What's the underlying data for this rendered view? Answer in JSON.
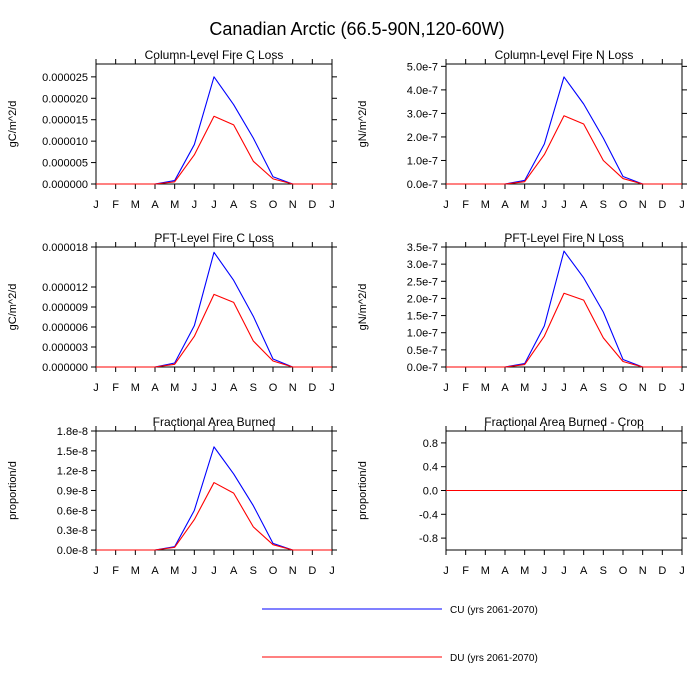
{
  "figure": {
    "title": "Canadian Arctic (66.5-90N,120-60W)",
    "legend": [
      {
        "label": "CU (yrs 2061-2070)",
        "color": "#0000ff"
      },
      {
        "label": "DU (yrs 2061-2070)",
        "color": "#ff0000"
      }
    ]
  },
  "chart_data": [
    {
      "type": "line",
      "title": "Column-Level Fire C Loss",
      "ylabel": "gC/m^2/d",
      "xlabel": "",
      "categories": [
        "J",
        "F",
        "M",
        "A",
        "M",
        "J",
        "J",
        "A",
        "S",
        "O",
        "N",
        "D",
        "J"
      ],
      "ylim": [
        0,
        2.8e-05
      ],
      "yticks": [
        0,
        5e-06,
        1e-05,
        1.5e-05,
        2e-05,
        2.5e-05
      ],
      "yticklabels": [
        "0.000000",
        "0.000005",
        "0.000010",
        "0.000015",
        "0.000020",
        "0.000025"
      ],
      "series": [
        {
          "name": "CU (yrs 2061-2070)",
          "color": "#0000ff",
          "values": [
            0,
            0,
            0,
            0,
            8e-07,
            9.2e-06,
            2.5e-05,
            1.85e-05,
            1.07e-05,
            1.7e-06,
            0,
            0,
            0
          ]
        },
        {
          "name": "DU (yrs 2061-2070)",
          "color": "#ff0000",
          "values": [
            0,
            0,
            0,
            0,
            5e-07,
            6.8e-06,
            1.58e-05,
            1.38e-05,
            5.3e-06,
            1.2e-06,
            0,
            0,
            0
          ]
        }
      ]
    },
    {
      "type": "line",
      "title": "Column-Level Fire N Loss",
      "ylabel": "gN/m^2/d",
      "xlabel": "",
      "categories": [
        "J",
        "F",
        "M",
        "A",
        "M",
        "J",
        "J",
        "A",
        "S",
        "O",
        "N",
        "D",
        "J"
      ],
      "ylim": [
        0,
        5.1e-07
      ],
      "yticks": [
        0,
        1e-07,
        2e-07,
        3e-07,
        4e-07,
        5e-07
      ],
      "yticklabels": [
        "0.0e-7",
        "1.0e-7",
        "2.0e-7",
        "3.0e-7",
        "4.0e-7",
        "5.0e-7"
      ],
      "series": [
        {
          "name": "CU (yrs 2061-2070)",
          "color": "#0000ff",
          "values": [
            0,
            0,
            0,
            0,
            1.5e-08,
            1.7e-07,
            4.55e-07,
            3.4e-07,
            1.95e-07,
            3.2e-08,
            0,
            0,
            0
          ]
        },
        {
          "name": "DU (yrs 2061-2070)",
          "color": "#ff0000",
          "values": [
            0,
            0,
            0,
            0,
            1e-08,
            1.25e-07,
            2.9e-07,
            2.55e-07,
            1e-07,
            2.3e-08,
            0,
            0,
            0
          ]
        }
      ]
    },
    {
      "type": "line",
      "title": "PFT-Level Fire C Loss",
      "ylabel": "gC/m^2/d",
      "xlabel": "",
      "categories": [
        "J",
        "F",
        "M",
        "A",
        "M",
        "J",
        "J",
        "A",
        "S",
        "O",
        "N",
        "D",
        "J"
      ],
      "ylim": [
        0,
        1.8e-05
      ],
      "yticks": [
        0,
        3e-06,
        6e-06,
        9e-06,
        1.2e-05,
        1.8e-05
      ],
      "yticklabels": [
        "0.000000",
        "0.000003",
        "0.000006",
        "0.000009",
        "0.000012",
        "0.000018"
      ],
      "series": [
        {
          "name": "CU (yrs 2061-2070)",
          "color": "#0000ff",
          "values": [
            0,
            0,
            0,
            0,
            6e-07,
            6.2e-06,
            1.72e-05,
            1.3e-05,
            7.6e-06,
            1.2e-06,
            0,
            0,
            0
          ]
        },
        {
          "name": "DU (yrs 2061-2070)",
          "color": "#ff0000",
          "values": [
            0,
            0,
            0,
            0,
            4e-07,
            4.6e-06,
            1.09e-05,
            9.7e-06,
            3.9e-06,
            9e-07,
            0,
            0,
            0
          ]
        }
      ]
    },
    {
      "type": "line",
      "title": "PFT-Level Fire N Loss",
      "ylabel": "gN/m^2/d",
      "xlabel": "",
      "categories": [
        "J",
        "F",
        "M",
        "A",
        "M",
        "J",
        "J",
        "A",
        "S",
        "O",
        "N",
        "D",
        "J"
      ],
      "ylim": [
        0,
        3.5e-07
      ],
      "yticks": [
        0,
        5e-08,
        1e-07,
        1.5e-07,
        2e-07,
        2.5e-07,
        3e-07,
        3.5e-07
      ],
      "yticklabels": [
        "0.0e-7",
        "0.5e-7",
        "1.0e-7",
        "1.5e-7",
        "2.0e-7",
        "2.5e-7",
        "3.0e-7",
        "3.5e-7"
      ],
      "series": [
        {
          "name": "CU (yrs 2061-2070)",
          "color": "#0000ff",
          "values": [
            0,
            0,
            0,
            0,
            1e-08,
            1.2e-07,
            3.38e-07,
            2.6e-07,
            1.6e-07,
            2.2e-08,
            0,
            0,
            0
          ]
        },
        {
          "name": "DU (yrs 2061-2070)",
          "color": "#ff0000",
          "values": [
            0,
            0,
            0,
            0,
            7e-09,
            9e-08,
            2.15e-07,
            1.95e-07,
            8.5e-08,
            1.6e-08,
            0,
            0,
            0
          ]
        }
      ]
    },
    {
      "type": "line",
      "title": "Fractional Area Burned",
      "ylabel": "proportion/d",
      "xlabel": "",
      "categories": [
        "J",
        "F",
        "M",
        "A",
        "M",
        "J",
        "J",
        "A",
        "S",
        "O",
        "N",
        "D",
        "J"
      ],
      "ylim": [
        0,
        1.8e-08
      ],
      "yticks": [
        0,
        3e-09,
        6e-09,
        9e-09,
        1.2e-08,
        1.5e-08,
        1.8e-08
      ],
      "yticklabels": [
        "0.0e-8",
        "0.3e-8",
        "0.6e-8",
        "0.9e-8",
        "1.2e-8",
        "1.5e-8",
        "1.8e-8"
      ],
      "series": [
        {
          "name": "CU (yrs 2061-2070)",
          "color": "#0000ff",
          "values": [
            0,
            0,
            0,
            0,
            5e-10,
            6e-09,
            1.56e-08,
            1.15e-08,
            6.7e-09,
            1e-09,
            0,
            0,
            0
          ]
        },
        {
          "name": "DU (yrs 2061-2070)",
          "color": "#ff0000",
          "values": [
            0,
            0,
            0,
            0,
            4e-10,
            4.6e-09,
            1.02e-08,
            8.6e-09,
            3.5e-09,
            8e-10,
            0,
            0,
            0
          ]
        }
      ]
    },
    {
      "type": "line",
      "title": "Fractional Area Burned - Crop",
      "ylabel": "proportion/d",
      "xlabel": "",
      "categories": [
        "J",
        "F",
        "M",
        "A",
        "M",
        "J",
        "J",
        "A",
        "S",
        "O",
        "N",
        "D",
        "J"
      ],
      "ylim": [
        -1.0,
        1.0
      ],
      "yticks": [
        -0.8,
        -0.4,
        0.0,
        0.4,
        0.8
      ],
      "yticklabels": [
        "-0.8",
        "-0.4",
        "0.0",
        "0.4",
        "0.8"
      ],
      "series": [
        {
          "name": "CU (yrs 2061-2070)",
          "color": "#0000ff",
          "values": [
            0,
            0,
            0,
            0,
            0,
            0,
            0,
            0,
            0,
            0,
            0,
            0,
            0
          ]
        },
        {
          "name": "DU (yrs 2061-2070)",
          "color": "#ff0000",
          "values": [
            0,
            0,
            0,
            0,
            0,
            0,
            0,
            0,
            0,
            0,
            0,
            0,
            0
          ]
        }
      ]
    }
  ]
}
